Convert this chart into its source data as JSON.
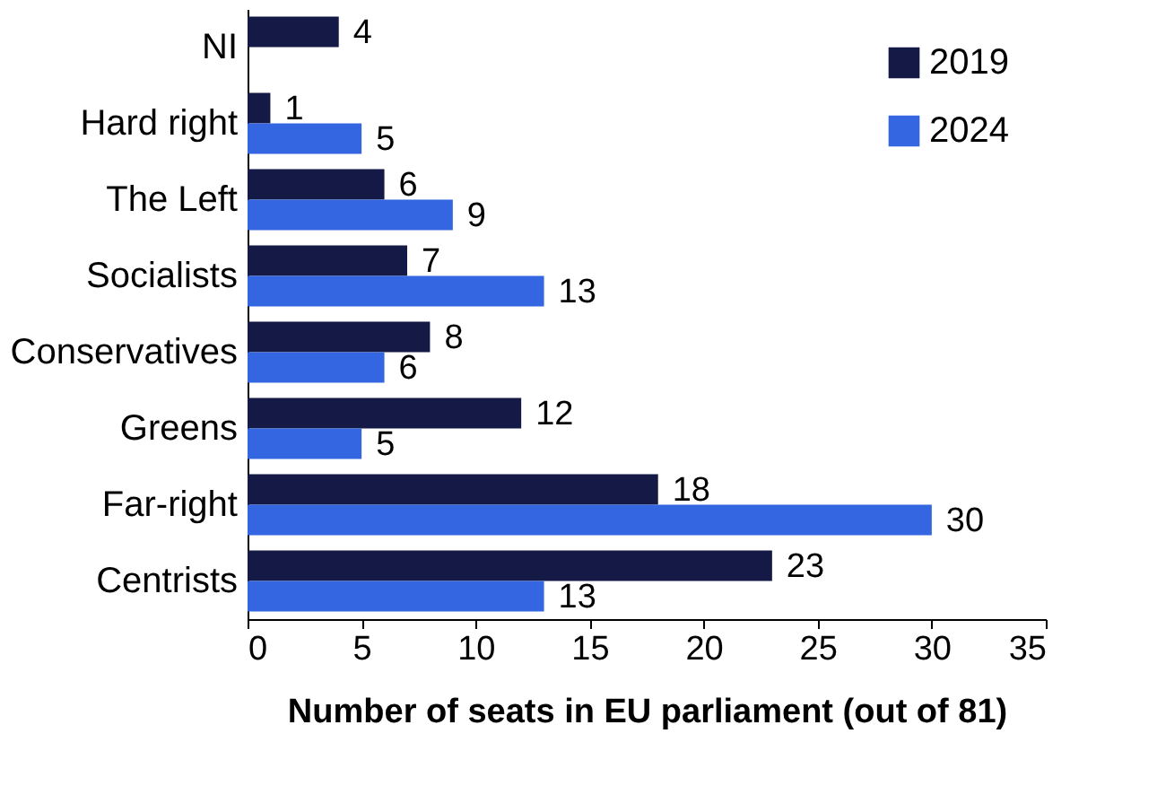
{
  "chart_data": {
    "type": "bar",
    "orientation": "horizontal",
    "xlabel": "Number of seats in EU parliament (out of 81)",
    "categories": [
      "NI",
      "Hard right",
      "The Left",
      "Socialists",
      "Conservatives",
      "Greens",
      "Far-right",
      "Centrists"
    ],
    "series": [
      {
        "name": "2019",
        "color": "#141a45",
        "values": [
          4,
          1,
          6,
          7,
          8,
          12,
          18,
          23
        ]
      },
      {
        "name": "2024",
        "color": "#3366e0",
        "values": [
          null,
          5,
          9,
          13,
          6,
          5,
          30,
          13
        ]
      }
    ],
    "xlim": [
      0,
      35
    ],
    "xticks": [
      0,
      5,
      10,
      15,
      20,
      25,
      30,
      35
    ],
    "data_labels": true,
    "legend": "top right",
    "grid": false
  }
}
